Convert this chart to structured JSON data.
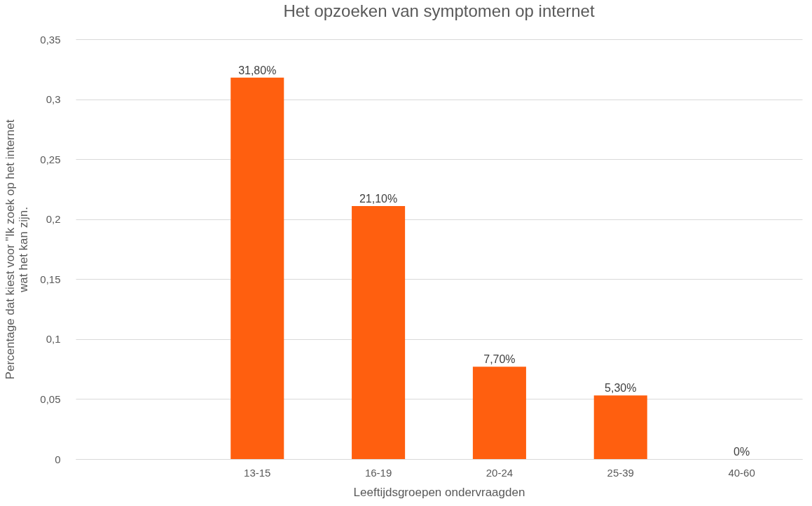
{
  "chart_data": {
    "type": "bar",
    "title": "Het opzoeken van symptomen op internet",
    "xlabel": "Leeftijdsgroepen ondervraagden",
    "ylabel": "Percentage dat kiest voor \"Ik zoek op het internet wat het kan zijn.",
    "categories": [
      null,
      "13-15",
      "16-19",
      "20-24",
      "25-39",
      "40-60"
    ],
    "values": [
      null,
      0.318,
      0.211,
      0.077,
      0.053,
      0
    ],
    "value_labels": [
      null,
      "31,80%",
      "21,10%",
      "7,70%",
      "5,30%",
      "0%"
    ],
    "color": "#ff5f0f",
    "ylim": [
      0,
      0.35
    ],
    "yticks": [
      0,
      {
        "value": 0.05,
        "label": "0,05"
      },
      {
        "value": 0.1,
        "label": "0,1"
      },
      {
        "value": 0.15,
        "label": "0,15"
      },
      {
        "value": 0.2,
        "label": "0,2"
      },
      {
        "value": 0.25,
        "label": "0,25"
      },
      {
        "value": 0.3,
        "label": "0,3"
      },
      {
        "value": 0.35,
        "label": "0,35"
      }
    ],
    "grid": "y"
  }
}
